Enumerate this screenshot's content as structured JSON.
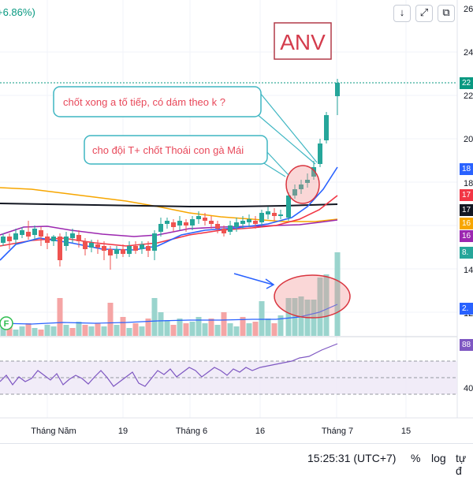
{
  "header": {
    "change_text": "+6.86%)"
  },
  "toolbar": {
    "buttons": [
      {
        "name": "download-icon",
        "glyph": "↓"
      },
      {
        "name": "fullscreen-icon",
        "glyph": "⤢"
      },
      {
        "name": "snapshot-icon",
        "glyph": "⧉"
      }
    ]
  },
  "annotations": {
    "ticker": "ANV",
    "note1": "chốt xong a tố tiếp, có dám theo k ?",
    "note2": "cho đội T+ chốt Thoái con gà Mái",
    "f_badge": "F"
  },
  "price_axis": {
    "ticks": [
      "26",
      "24",
      "22",
      "20",
      "18",
      "14",
      "12"
    ],
    "tags": [
      {
        "label": "22",
        "color": "#089981"
      },
      {
        "label": "18",
        "color": "#2962ff"
      },
      {
        "label": "17",
        "color": "#f23645"
      },
      {
        "label": "17",
        "color": "#131722"
      },
      {
        "label": "16",
        "color": "#f7a600"
      },
      {
        "label": "16",
        "color": "#9c27b0"
      },
      {
        "label": "8.",
        "color": "#26a69a"
      },
      {
        "label": "2.",
        "color": "#2962ff"
      }
    ]
  },
  "rsi_axis": {
    "tag": {
      "label": "88",
      "color": "#7e57c2"
    },
    "ticks": [
      "40"
    ]
  },
  "time_axis": {
    "labels": [
      "Tháng Năm",
      "19",
      "Tháng 6",
      "16",
      "Tháng 7",
      "15"
    ]
  },
  "bottom_bar": {
    "time": "15:25:31 (UTC+7)",
    "percent": "%",
    "log": "log",
    "auto": "tự đ"
  },
  "colors": {
    "up": "#26a69a",
    "down": "#ef5350",
    "ma_blue": "#2962ff",
    "ma_red": "#f23645",
    "ma_black": "#131722",
    "ma_orange": "#f7a600",
    "ma_purple": "#9c27b0",
    "rsi": "#7e57c2",
    "annotation": "#e8485a",
    "callout_border": "#3fb6c2"
  }
}
